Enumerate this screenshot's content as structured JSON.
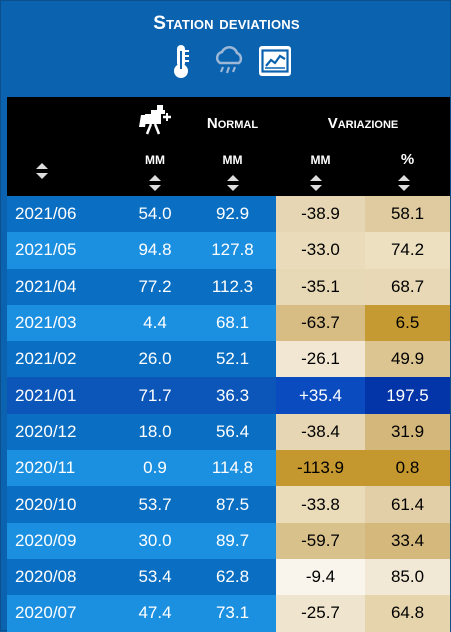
{
  "title": "Station deviations",
  "icons": [
    "thermometer-icon",
    "rain-cloud-icon",
    "chart-icon"
  ],
  "header": {
    "col_mm_icon": "station-icon",
    "col_normal": "Normal",
    "col_variazione": "Variazione",
    "unit_mm_1": "MM",
    "unit_mm_2": "MM",
    "unit_mm_3": "MM",
    "unit_pct": "%"
  },
  "colors": {
    "row_dark": "#0a6fc2",
    "row_light": "#1b8fe0",
    "highlight_row": "#0b56b8",
    "pos_strong": "#0334a8",
    "neg_light": "#f4ecdf",
    "neg_mid": "#e8d9b8",
    "neg_dark": "#d4b980",
    "neg_strong": "#c69a35"
  },
  "rows": [
    {
      "date": "2021/06",
      "mm": "54.0",
      "normal": "92.9",
      "var": "-38.9",
      "pct": "58.1",
      "var_bg": "#e6d6b3",
      "pct_bg": "#e0cba0"
    },
    {
      "date": "2021/05",
      "mm": "94.8",
      "normal": "127.8",
      "var": "-33.0",
      "pct": "74.2",
      "var_bg": "#eadcbb",
      "pct_bg": "#ece0c1"
    },
    {
      "date": "2021/04",
      "mm": "77.2",
      "normal": "112.3",
      "var": "-35.1",
      "pct": "68.7",
      "var_bg": "#e8d9b6",
      "pct_bg": "#e8d8b5"
    },
    {
      "date": "2021/03",
      "mm": "4.4",
      "normal": "68.1",
      "var": "-63.7",
      "pct": "6.5",
      "var_bg": "#d7bc83",
      "pct_bg": "#c69a33"
    },
    {
      "date": "2021/02",
      "mm": "26.0",
      "normal": "52.1",
      "var": "-26.1",
      "pct": "49.9",
      "var_bg": "#f1e7d3",
      "pct_bg": "#dcc591"
    },
    {
      "date": "2021/01",
      "mm": "71.7",
      "normal": "36.3",
      "var": "+35.4",
      "pct": "197.5",
      "var_bg": "#0a4cbf",
      "pct_bg": "#0334a8",
      "positive": true
    },
    {
      "date": "2020/12",
      "mm": "18.0",
      "normal": "56.4",
      "var": "-38.4",
      "pct": "31.9",
      "var_bg": "#e6d6b3",
      "pct_bg": "#d4b77b"
    },
    {
      "date": "2020/11",
      "mm": "0.9",
      "normal": "114.8",
      "var": "-113.9",
      "pct": "0.8",
      "var_bg": "#c4972f",
      "pct_bg": "#c4972f"
    },
    {
      "date": "2020/10",
      "mm": "53.7",
      "normal": "87.5",
      "var": "-33.8",
      "pct": "61.4",
      "var_bg": "#eadbb9",
      "pct_bg": "#e3cfa7"
    },
    {
      "date": "2020/09",
      "mm": "30.0",
      "normal": "89.7",
      "var": "-59.7",
      "pct": "33.4",
      "var_bg": "#d9c18b",
      "pct_bg": "#d5b87c"
    },
    {
      "date": "2020/08",
      "mm": "53.4",
      "normal": "62.8",
      "var": "-9.4",
      "pct": "85.0",
      "var_bg": "#faf5ec",
      "pct_bg": "#f2e8d6"
    },
    {
      "date": "2020/07",
      "mm": "47.4",
      "normal": "73.1",
      "var": "-25.7",
      "pct": "64.8",
      "var_bg": "#efe4cd",
      "pct_bg": "#e6d4ad"
    }
  ]
}
